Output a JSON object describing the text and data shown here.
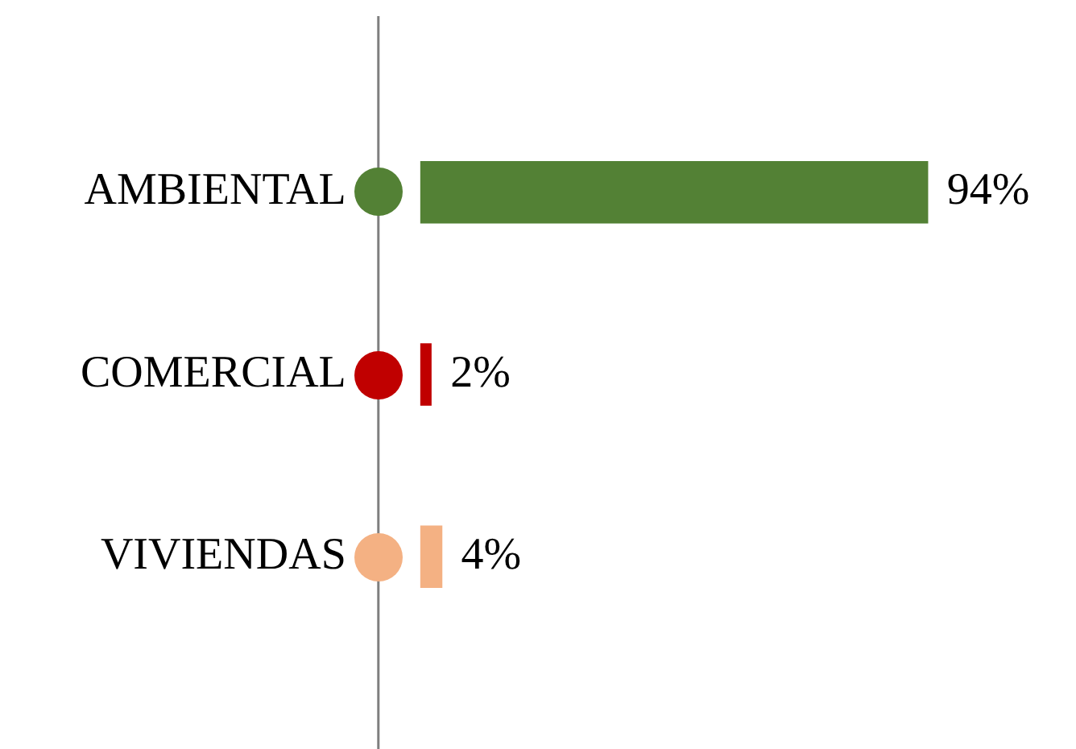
{
  "chart_data": {
    "type": "bar",
    "orientation": "horizontal",
    "categories": [
      "AMBIENTAL",
      "COMERCIAL",
      "VIVIENDAS"
    ],
    "values": [
      94,
      2,
      4
    ],
    "value_labels": [
      "94%",
      "2%",
      "4%"
    ],
    "colors": [
      "#538135",
      "#c00000",
      "#f4b183"
    ],
    "marker": "circle",
    "tick_labels": "y",
    "grid": false,
    "legend": false
  }
}
